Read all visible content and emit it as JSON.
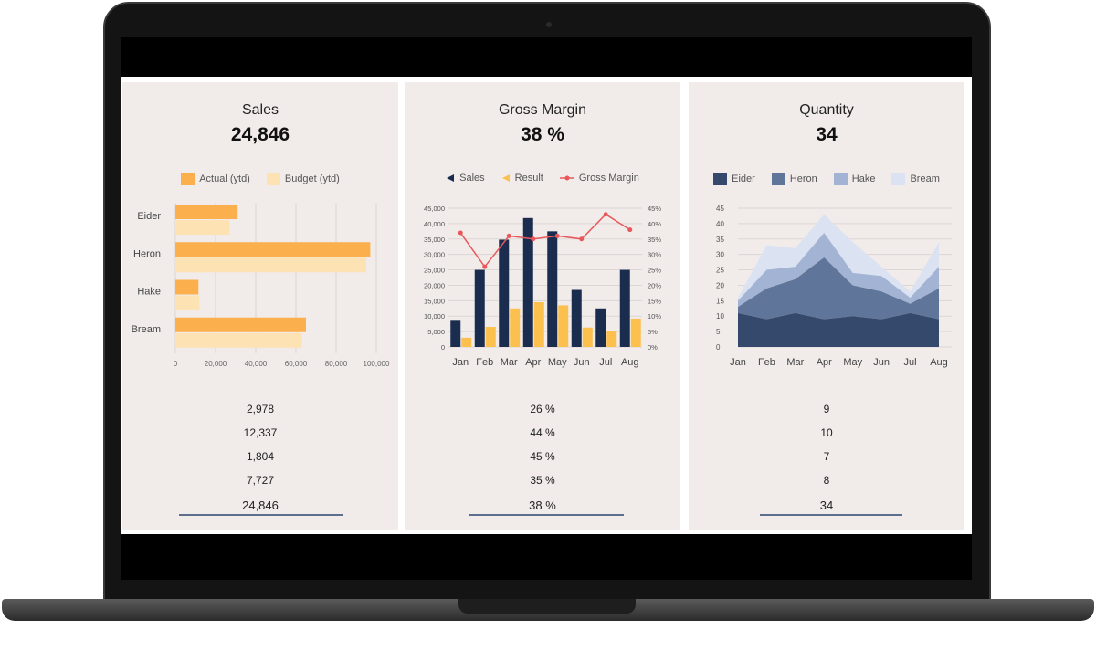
{
  "panels": [
    {
      "title": "Sales",
      "kpi": "24,846",
      "legend": [
        {
          "label": "Actual (ytd)",
          "color": "#fbb04d"
        },
        {
          "label": "Budget (ytd)",
          "color": "#fde3b4"
        }
      ],
      "rows": [
        "2,978",
        "12,337",
        "1,804",
        "7,727"
      ],
      "total": "24,846"
    },
    {
      "title": "Gross Margin",
      "kpi": "38 %",
      "legend": [
        {
          "label": "Sales",
          "color": "#1b2d4f",
          "icon": "triangle-left-icon"
        },
        {
          "label": "Result",
          "color": "#fbc04d",
          "icon": "triangle-left-icon"
        },
        {
          "label": "Gross Margin",
          "color": "#e8575a",
          "icon": "line-dot-icon"
        }
      ],
      "rows": [
        "26 %",
        "44 %",
        "45 %",
        "35 %"
      ],
      "total": "38 %"
    },
    {
      "title": "Quantity",
      "kpi": "34",
      "legend": [
        {
          "label": "Eider",
          "color": "#34496b"
        },
        {
          "label": "Heron",
          "color": "#5f7599"
        },
        {
          "label": "Hake",
          "color": "#a3b3d3"
        },
        {
          "label": "Bream",
          "color": "#dbe3f3"
        }
      ],
      "rows": [
        "9",
        "10",
        "7",
        "8"
      ],
      "total": "34"
    }
  ],
  "chart_data": [
    {
      "type": "bar",
      "orientation": "horizontal",
      "categories": [
        "Eider",
        "Heron",
        "Hake",
        "Bream"
      ],
      "series": [
        {
          "name": "Actual (ytd)",
          "values": [
            31000,
            97000,
            11500,
            65000
          ]
        },
        {
          "name": "Budget (ytd)",
          "values": [
            27000,
            95000,
            12000,
            63000
          ]
        }
      ],
      "xticks": [
        "0",
        "20,000",
        "40,000",
        "60,000",
        "80,000",
        "100,000"
      ],
      "xlim": [
        0,
        100000
      ],
      "grid": true
    },
    {
      "type": "bar",
      "categories": [
        "Jan",
        "Feb",
        "Mar",
        "Apr",
        "May",
        "Jun",
        "Jul",
        "Aug"
      ],
      "series": [
        {
          "name": "Sales",
          "values": [
            8500,
            25000,
            34800,
            41800,
            37500,
            18500,
            12500,
            25000
          ]
        },
        {
          "name": "Result",
          "values": [
            3000,
            6500,
            12500,
            14500,
            13500,
            6300,
            5200,
            9200
          ]
        },
        {
          "name": "Gross Margin",
          "type": "line",
          "axis": "right",
          "values": [
            37,
            26,
            36,
            35,
            36,
            35,
            43,
            38
          ]
        }
      ],
      "yticks_left": [
        "0",
        "5,000",
        "10,000",
        "15,000",
        "20,000",
        "25,000",
        "30,000",
        "35,000",
        "40,000",
        "45,000"
      ],
      "yticks_right": [
        "0%",
        "5%",
        "10%",
        "15%",
        "20%",
        "25%",
        "30%",
        "35%",
        "40%",
        "45%"
      ],
      "ylim": [
        0,
        45000
      ],
      "ylim_right": [
        0,
        45
      ],
      "grid": true
    },
    {
      "type": "area",
      "stacked": true,
      "x": [
        "Jan",
        "Feb",
        "Mar",
        "Apr",
        "May",
        "Jun",
        "Jul",
        "Aug"
      ],
      "series": [
        {
          "name": "Eider",
          "values": [
            11,
            9,
            11,
            9,
            10,
            9,
            11,
            9
          ]
        },
        {
          "name": "Heron",
          "values": [
            2,
            10,
            11,
            20,
            10,
            9,
            3,
            10
          ]
        },
        {
          "name": "Hake",
          "values": [
            2,
            6,
            4,
            8,
            4,
            5,
            2,
            7
          ]
        },
        {
          "name": "Bream",
          "values": [
            1,
            8,
            6,
            6,
            10,
            3,
            2,
            8
          ]
        }
      ],
      "yticks": [
        "0",
        "5",
        "10",
        "15",
        "20",
        "25",
        "30",
        "35",
        "40",
        "45"
      ],
      "ylim": [
        0,
        45
      ],
      "grid": true
    }
  ]
}
